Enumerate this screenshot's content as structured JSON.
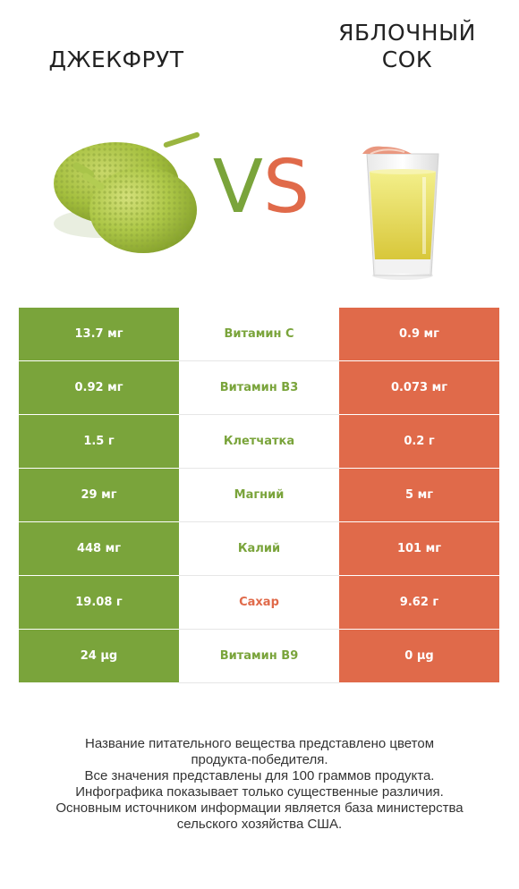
{
  "header": {
    "left_title": "ДЖЕКФРУТ",
    "right_title_line1": "ЯБЛОЧНЫЙ",
    "right_title_line2": "СОК",
    "vs_v": "V",
    "vs_s": "S"
  },
  "colors": {
    "left_product": "#7aa43b",
    "right_product": "#e06a4a"
  },
  "images": {
    "left": "jackfruit-image",
    "right": "apple-juice-glass-image"
  },
  "rows": [
    {
      "left": "13.7 мг",
      "nutrient": "Витамин C",
      "right": "0.9 мг",
      "winner": "left"
    },
    {
      "left": "0.92 мг",
      "nutrient": "Витамин B3",
      "right": "0.073 мг",
      "winner": "left"
    },
    {
      "left": "1.5 г",
      "nutrient": "Клетчатка",
      "right": "0.2 г",
      "winner": "left"
    },
    {
      "left": "29 мг",
      "nutrient": "Магний",
      "right": "5 мг",
      "winner": "left"
    },
    {
      "left": "448 мг",
      "nutrient": "Калий",
      "right": "101 мг",
      "winner": "left"
    },
    {
      "left": "19.08 г",
      "nutrient": "Сахар",
      "right": "9.62 г",
      "winner": "right"
    },
    {
      "left": "24 µg",
      "nutrient": "Витамин B9",
      "right": "0 µg",
      "winner": "left"
    }
  ],
  "footer": {
    "line1": "Название питательного вещества представлено цветом",
    "line2": "продукта-победителя.",
    "line3": "Все значения представлены для 100 граммов продукта.",
    "line4": "Инфографика показывает только существенные различия.",
    "line5": "Основным источником информации является база министерства",
    "line6": "сельского хозяйства США."
  }
}
